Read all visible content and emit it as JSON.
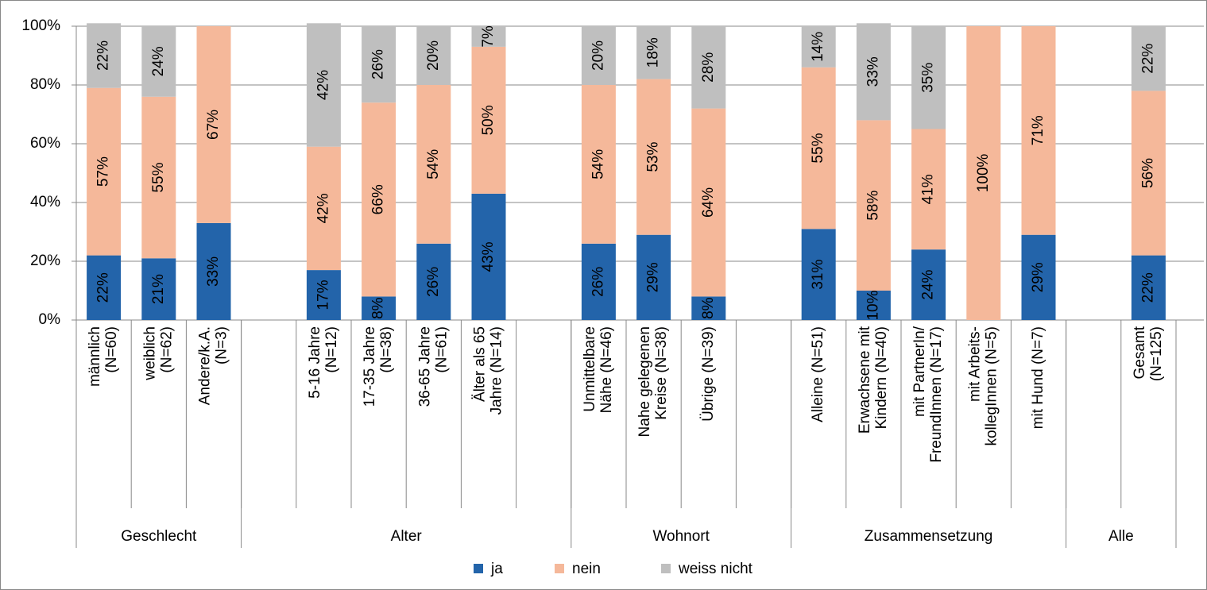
{
  "chart_data": {
    "type": "stacked_bar",
    "categories": [
      "männlich\n(N=60)",
      "weiblich\n(N=62)",
      "Andere/k.A.\n(N=3)",
      null,
      "5-16 Jahre\n(N=12)",
      "17-35 Jahre\n(N=38)",
      "36-65 Jahre\n(N=61)",
      "Älter als 65\nJahre (N=14)",
      null,
      "Unmittelbare\nNähe (N=46)",
      "Nahe gelegenen\nKreise (N=38)",
      "Übrige (N=39)",
      null,
      "Alleine (N=51)",
      "Erwachsene mit\nKindern (N=40)",
      "mit PartnerIn/\nFreundInnen (N=17)",
      "mit Arbeits-\nkollegInnen (N=5)",
      "mit Hund (N=7)",
      null,
      "Gesamt\n(N=125)"
    ],
    "groups": [
      {
        "label": "Geschlecht",
        "span": 3
      },
      {
        "label": "Alter",
        "span": 6
      },
      {
        "label": "Wohnort",
        "span": 4
      },
      {
        "label": "Zusammensetzung",
        "span": 5
      },
      {
        "label": "Alle",
        "span": 2
      }
    ],
    "series": [
      {
        "name": "ja",
        "color": "#2364aa",
        "values": [
          22,
          21,
          33,
          null,
          17,
          8,
          26,
          43,
          null,
          26,
          29,
          8,
          null,
          31,
          10,
          24,
          null,
          29,
          null,
          22
        ],
        "value_labels": [
          "22%",
          "21%",
          "33%",
          null,
          "17%",
          "8%",
          "26%",
          "43%",
          null,
          "26%",
          "29%",
          "8%",
          null,
          "31%",
          "10%",
          "24%",
          null,
          "29%",
          null,
          "22%"
        ]
      },
      {
        "name": "nein",
        "color": "#f5b89a",
        "values": [
          57,
          55,
          67,
          null,
          42,
          66,
          54,
          50,
          null,
          54,
          53,
          64,
          null,
          55,
          58,
          41,
          100,
          71,
          null,
          56
        ],
        "value_labels": [
          "57%",
          "55%",
          "67%",
          null,
          "42%",
          "66%",
          "54%",
          "50%",
          null,
          "54%",
          "53%",
          "64%",
          null,
          "55%",
          "58%",
          "41%",
          "100%",
          "71%",
          null,
          "56%"
        ]
      },
      {
        "name": "weiss nicht",
        "color": "#bfbfbf",
        "values": [
          22,
          24,
          null,
          null,
          42,
          26,
          20,
          7,
          null,
          20,
          18,
          28,
          null,
          14,
          33,
          35,
          null,
          null,
          null,
          22
        ],
        "value_labels": [
          "22%",
          "24%",
          null,
          null,
          "42%",
          "26%",
          "20%",
          "7%",
          null,
          "20%",
          "18%",
          "28%",
          null,
          "14%",
          "33%",
          "35%",
          null,
          null,
          null,
          "22%"
        ]
      }
    ],
    "ylim": [
      0,
      100
    ],
    "yticks": [
      {
        "value": 0,
        "label": "0%"
      },
      {
        "value": 20,
        "label": "20%"
      },
      {
        "value": 40,
        "label": "40%"
      },
      {
        "value": 60,
        "label": "60%"
      },
      {
        "value": 80,
        "label": "80%"
      },
      {
        "value": 100,
        "label": "100%"
      }
    ],
    "grid": true,
    "legend": "bottom"
  }
}
